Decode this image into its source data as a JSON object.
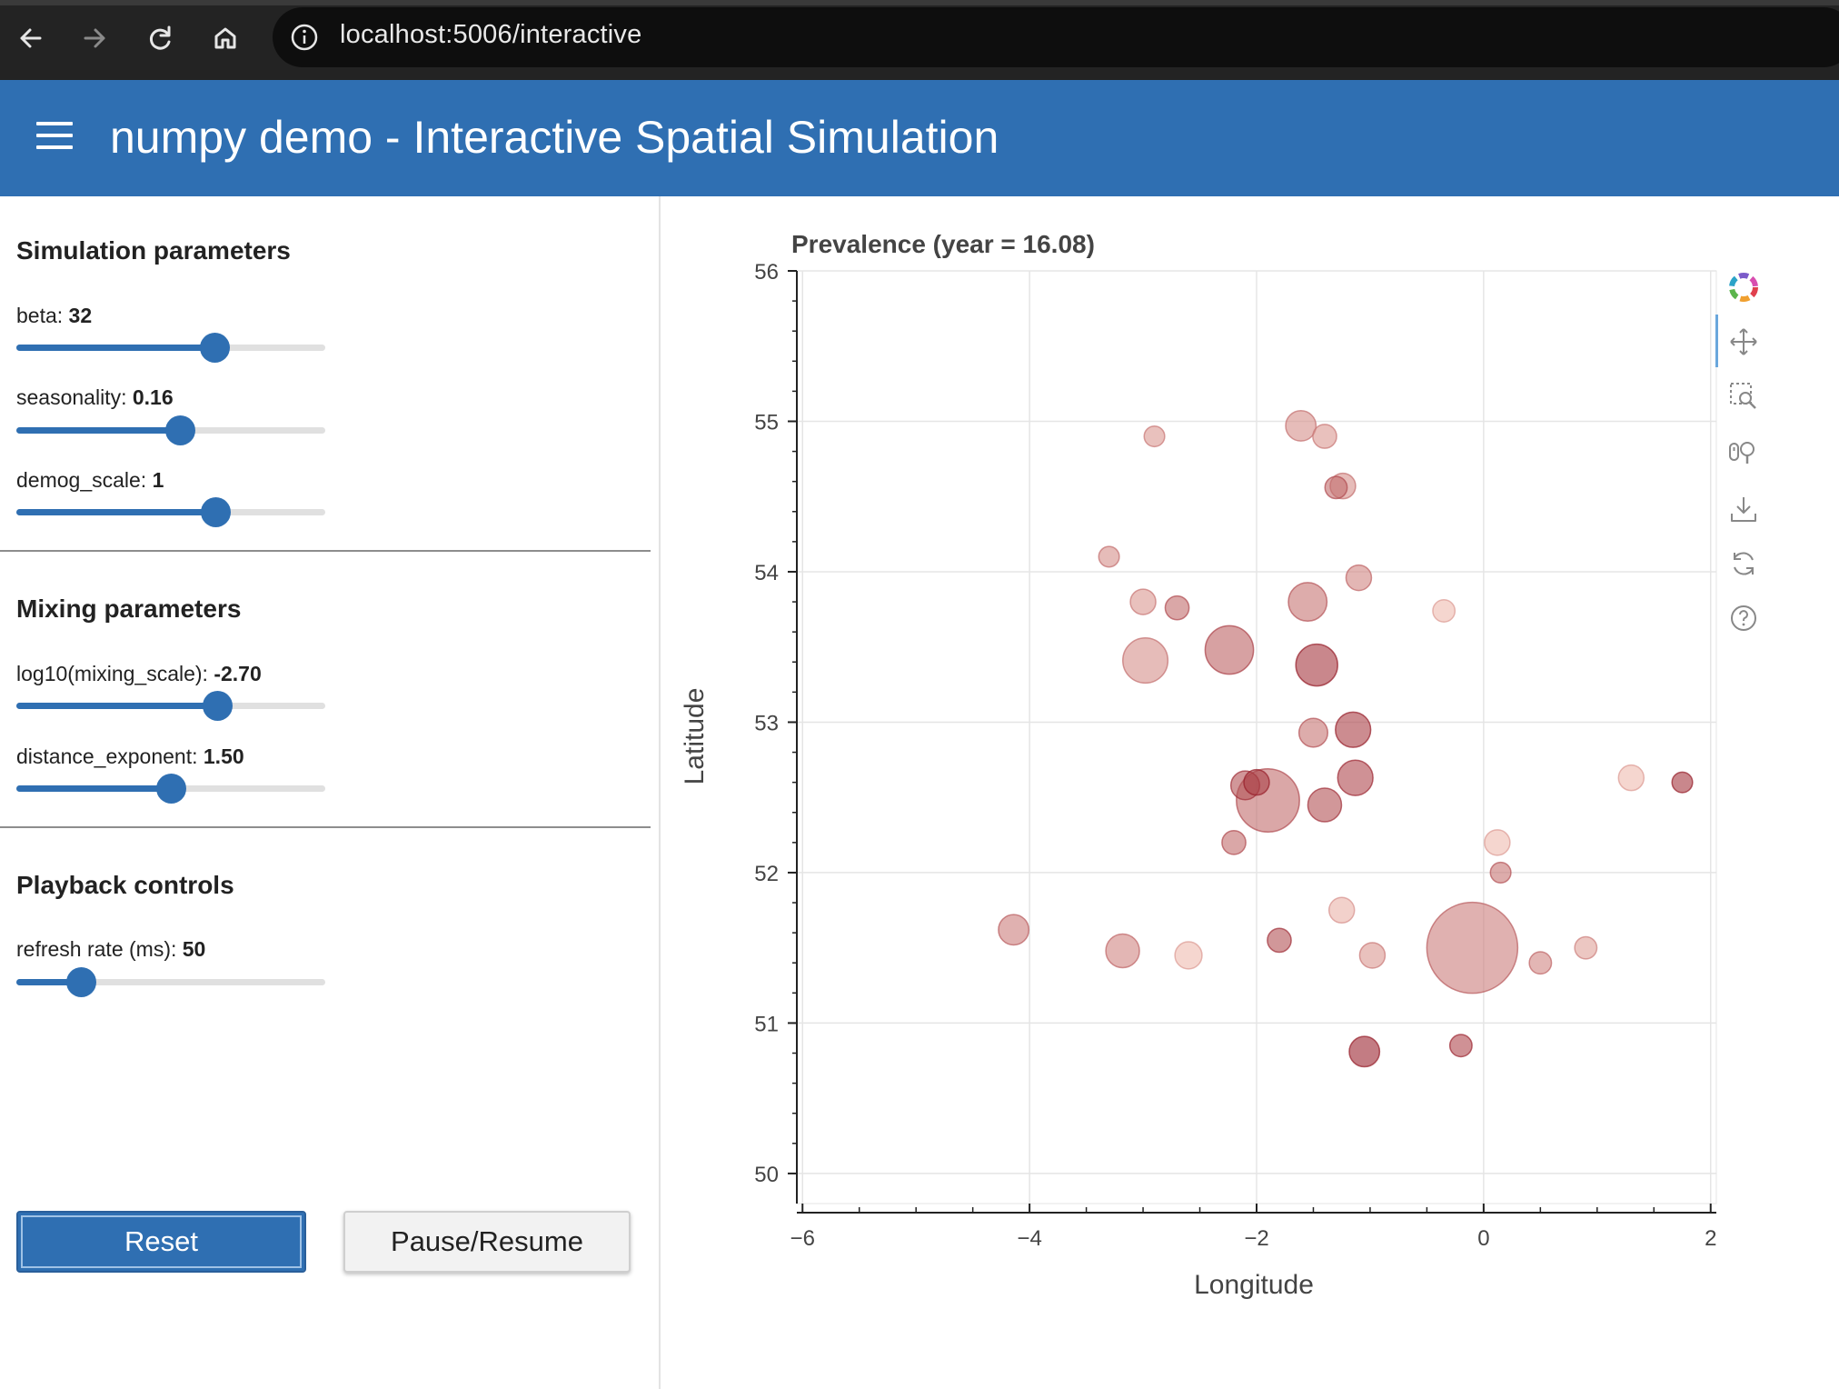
{
  "browser": {
    "url": "localhost:5006/interactive"
  },
  "header": {
    "title": "numpy demo - Interactive Spatial Simulation"
  },
  "sidebar": {
    "simulation": {
      "title": "Simulation parameters",
      "sliders": [
        {
          "name": "beta",
          "label": "beta: ",
          "value": "32",
          "fraction": 0.64
        },
        {
          "name": "seasonality",
          "label": "seasonality: ",
          "value": "0.16",
          "fraction": 0.53
        },
        {
          "name": "demog_scale",
          "label": "demog_scale: ",
          "value": "1",
          "fraction": 0.645
        }
      ]
    },
    "mixing": {
      "title": "Mixing parameters",
      "sliders": [
        {
          "name": "log10_mixing_scale",
          "label": "log10(mixing_scale): ",
          "value": "-2.70",
          "fraction": 0.65
        },
        {
          "name": "distance_exponent",
          "label": "distance_exponent: ",
          "value": "1.50",
          "fraction": 0.5
        }
      ]
    },
    "playback": {
      "title": "Playback controls",
      "sliders": [
        {
          "name": "refresh_rate",
          "label": "refresh rate (ms): ",
          "value": "50",
          "fraction": 0.21
        }
      ]
    },
    "buttons": {
      "reset": "Reset",
      "pause": "Pause/Resume"
    }
  },
  "toolbar": {
    "icons": [
      "bokeh-logo-icon",
      "pan-icon",
      "box-zoom-icon",
      "wheel-zoom-icon",
      "save-icon",
      "reset-icon",
      "help-icon"
    ]
  },
  "chart_data": {
    "type": "scatter",
    "title": "Prevalence (year = 16.08)",
    "xlabel": "Longitude",
    "ylabel": "Latitude",
    "xlim": [
      -6.05,
      2.05
    ],
    "ylim": [
      49.8,
      56.0
    ],
    "xticks": [
      "−6",
      "−4",
      "−2",
      "0",
      "2"
    ],
    "xtick_values": [
      -6,
      -4,
      -2,
      0,
      2
    ],
    "yticks": [
      "50",
      "51",
      "52",
      "53",
      "54",
      "55",
      "56"
    ],
    "ytick_values": [
      50,
      51,
      52,
      53,
      54,
      55,
      56
    ],
    "grid": true,
    "color_scale": "prevalence (light to dark red)",
    "points": [
      {
        "lon": -0.1,
        "lat": 51.5,
        "size": 5,
        "prev": 0.45
      },
      {
        "lon": -1.9,
        "lat": 52.48,
        "size": 3.3,
        "prev": 0.55
      },
      {
        "lon": -2.24,
        "lat": 53.48,
        "size": 2.4,
        "prev": 0.6
      },
      {
        "lon": -2.98,
        "lat": 53.41,
        "size": 2.2,
        "prev": 0.35
      },
      {
        "lon": -1.47,
        "lat": 53.38,
        "size": 2.0,
        "prev": 0.85
      },
      {
        "lon": -1.55,
        "lat": 53.8,
        "size": 1.8,
        "prev": 0.5
      },
      {
        "lon": -1.15,
        "lat": 52.95,
        "size": 1.6,
        "prev": 0.8
      },
      {
        "lon": -1.4,
        "lat": 52.45,
        "size": 1.5,
        "prev": 0.7
      },
      {
        "lon": -1.13,
        "lat": 52.63,
        "size": 1.6,
        "prev": 0.75
      },
      {
        "lon": -3.18,
        "lat": 51.48,
        "size": 1.5,
        "prev": 0.4
      },
      {
        "lon": -4.14,
        "lat": 51.62,
        "size": 1.3,
        "prev": 0.45
      },
      {
        "lon": -1.05,
        "lat": 50.81,
        "size": 1.3,
        "prev": 0.95
      },
      {
        "lon": -1.61,
        "lat": 54.97,
        "size": 1.3,
        "prev": 0.35
      },
      {
        "lon": -1.5,
        "lat": 52.93,
        "size": 1.2,
        "prev": 0.5
      },
      {
        "lon": -2.6,
        "lat": 51.45,
        "size": 1.1,
        "prev": 0.1
      },
      {
        "lon": -0.98,
        "lat": 51.45,
        "size": 1.0,
        "prev": 0.3
      },
      {
        "lon": 0.12,
        "lat": 52.2,
        "size": 1.0,
        "prev": 0.1
      },
      {
        "lon": 1.3,
        "lat": 52.63,
        "size": 1.0,
        "prev": 0.1
      },
      {
        "lon": -1.25,
        "lat": 51.75,
        "size": 1.0,
        "prev": 0.15
      },
      {
        "lon": -3.0,
        "lat": 53.8,
        "size": 1.0,
        "prev": 0.3
      },
      {
        "lon": -1.1,
        "lat": 53.96,
        "size": 1.0,
        "prev": 0.4
      },
      {
        "lon": -1.4,
        "lat": 54.9,
        "size": 0.9,
        "prev": 0.3
      },
      {
        "lon": -0.35,
        "lat": 53.74,
        "size": 0.8,
        "prev": 0.1
      },
      {
        "lon": 1.75,
        "lat": 52.6,
        "size": 0.7,
        "prev": 0.85
      },
      {
        "lon": -2.1,
        "lat": 52.58,
        "size": 1.2,
        "prev": 0.7
      },
      {
        "lon": -2.0,
        "lat": 52.6,
        "size": 1.0,
        "prev": 0.8
      },
      {
        "lon": -1.8,
        "lat": 51.55,
        "size": 0.9,
        "prev": 0.7
      },
      {
        "lon": -2.7,
        "lat": 53.76,
        "size": 0.9,
        "prev": 0.55
      },
      {
        "lon": -1.24,
        "lat": 54.57,
        "size": 1.0,
        "prev": 0.35
      },
      {
        "lon": -1.3,
        "lat": 54.56,
        "size": 0.8,
        "prev": 0.55
      },
      {
        "lon": -2.9,
        "lat": 54.9,
        "size": 0.7,
        "prev": 0.3
      },
      {
        "lon": -3.3,
        "lat": 54.1,
        "size": 0.7,
        "prev": 0.35
      },
      {
        "lon": -2.2,
        "lat": 52.2,
        "size": 0.9,
        "prev": 0.55
      },
      {
        "lon": -0.2,
        "lat": 50.85,
        "size": 0.8,
        "prev": 0.75
      },
      {
        "lon": 0.5,
        "lat": 51.4,
        "size": 0.8,
        "prev": 0.4
      },
      {
        "lon": 0.9,
        "lat": 51.5,
        "size": 0.8,
        "prev": 0.25
      },
      {
        "lon": 0.15,
        "lat": 52.0,
        "size": 0.7,
        "prev": 0.5
      }
    ]
  }
}
